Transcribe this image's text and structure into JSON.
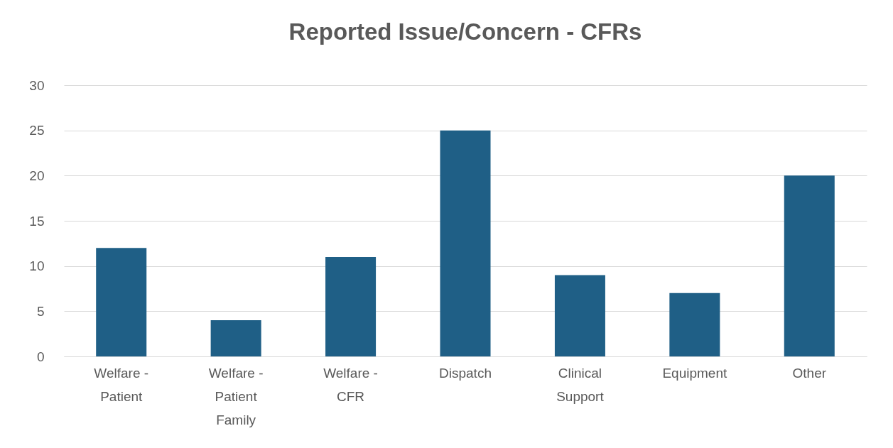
{
  "chart_data": {
    "type": "bar",
    "title": "Reported Issue/Concern - CFRs",
    "categories": [
      "Welfare - Patient",
      "Welfare - Patient Family",
      "Welfare - CFR",
      "Dispatch",
      "Clinical Support",
      "Equipment",
      "Other"
    ],
    "values": [
      12,
      4,
      11,
      25,
      9,
      7,
      20
    ],
    "color": "#1f5f86",
    "ylim": [
      0,
      30
    ],
    "yticks": [
      0,
      5,
      10,
      15,
      20,
      25,
      30
    ],
    "grid": "y"
  }
}
